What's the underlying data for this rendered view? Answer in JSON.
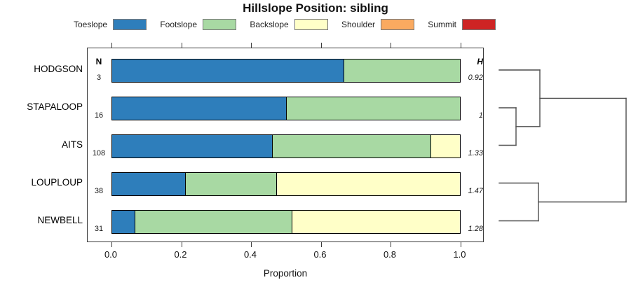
{
  "title": "Hillslope Position: sibling",
  "legend": {
    "items": [
      {
        "label": "Toeslope",
        "color": "#2E7EBB"
      },
      {
        "label": "Footslope",
        "color": "#A8D9A3"
      },
      {
        "label": "Backslope",
        "color": "#FFFFC8"
      },
      {
        "label": "Shoulder",
        "color": "#FAAA60"
      },
      {
        "label": "Summit",
        "color": "#CE2424"
      }
    ]
  },
  "columns": {
    "n_header": "N",
    "h_header": "H"
  },
  "x_axis": {
    "label": "Proportion",
    "ticks": [
      "0.0",
      "0.2",
      "0.4",
      "0.6",
      "0.8",
      "1.0"
    ]
  },
  "chart_data": {
    "type": "bar",
    "stacked": true,
    "orientation": "horizontal",
    "title": "Hillslope Position: sibling",
    "xlabel": "Proportion",
    "xlim": [
      0,
      1
    ],
    "grid": false,
    "legend_position": "top",
    "categories": [
      "HODGSON",
      "STAPALOOP",
      "AITS",
      "LOUPLOUP",
      "NEWBELL"
    ],
    "n_values": [
      "3",
      "16",
      "108",
      "38",
      "31"
    ],
    "h_values": [
      "0.92",
      "1",
      "1.33",
      "1.47",
      "1.28"
    ],
    "series": [
      {
        "name": "Toeslope",
        "color": "#2E7EBB",
        "values": [
          0.665,
          0.5,
          0.46,
          0.21,
          0.065
        ]
      },
      {
        "name": "Footslope",
        "color": "#A8D9A3",
        "values": [
          0.335,
          0.5,
          0.455,
          0.262,
          0.452
        ]
      },
      {
        "name": "Backslope",
        "color": "#FFFFC8",
        "values": [
          0,
          0,
          0.085,
          0.528,
          0.483
        ]
      },
      {
        "name": "Shoulder",
        "color": "#FAAA60",
        "values": [
          0,
          0,
          0,
          0,
          0
        ]
      },
      {
        "name": "Summit",
        "color": "#CE2424",
        "values": [
          0,
          0,
          0,
          0,
          0
        ]
      }
    ],
    "dendrogram": {
      "clusters": "((HODGSON,(STAPALOOP,AITS)),(LOUPLOUP,NEWBELL))",
      "segments": [
        [
          22,
          100,
          80,
          100
        ],
        [
          22,
          154,
          46,
          154
        ],
        [
          22,
          207.5,
          46,
          207.5
        ],
        [
          46,
          154,
          46,
          207.5
        ],
        [
          46,
          180.8,
          80,
          180.8
        ],
        [
          80,
          100,
          80,
          180.8
        ],
        [
          80,
          140.4,
          203,
          140.4
        ],
        [
          22,
          261.5,
          78,
          261.5
        ],
        [
          22,
          315.5,
          78,
          315.5
        ],
        [
          78,
          261.5,
          78,
          315.5
        ],
        [
          78,
          288.5,
          203,
          288.5
        ],
        [
          203,
          140.4,
          203,
          288.5
        ]
      ]
    }
  }
}
